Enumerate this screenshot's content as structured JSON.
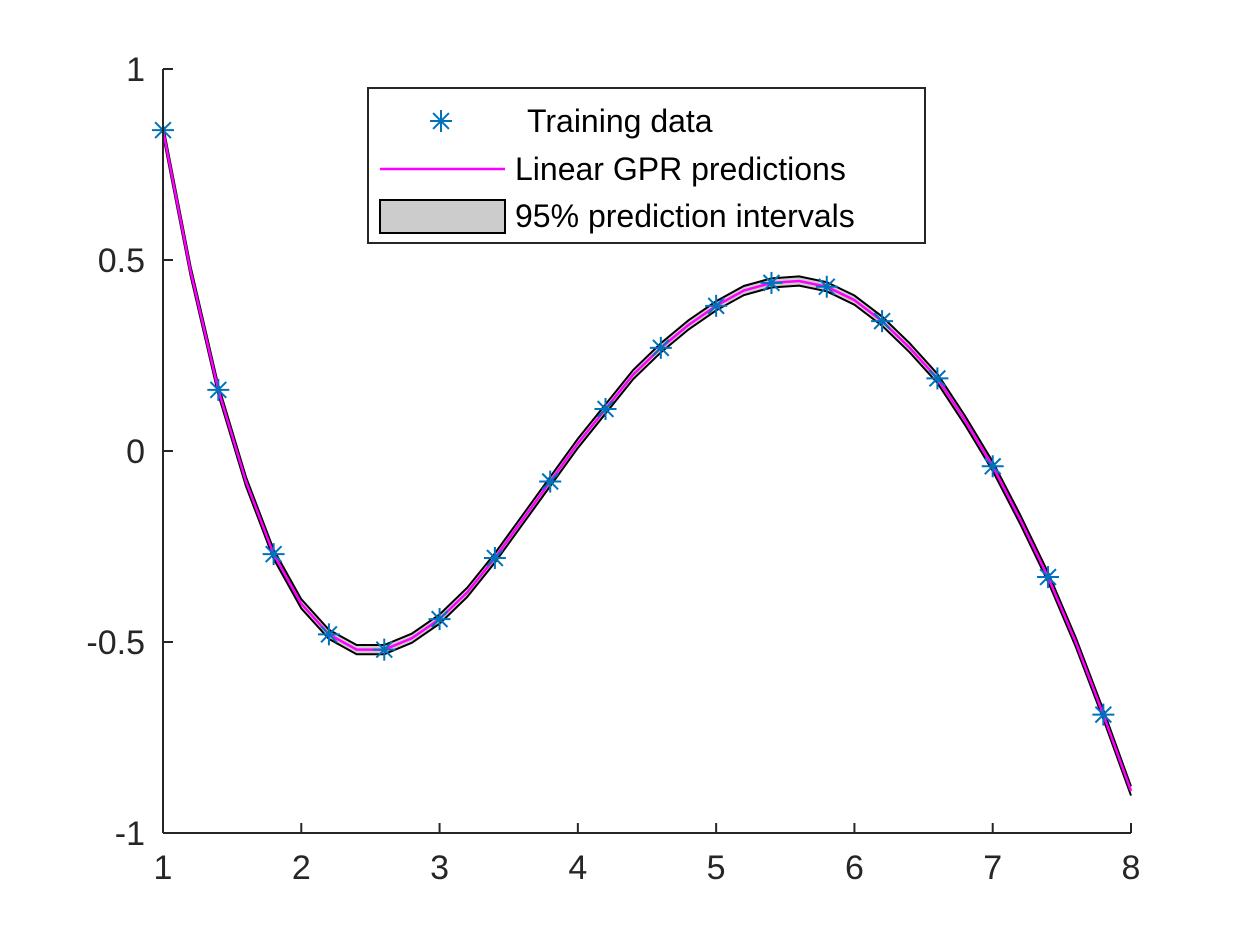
{
  "chart_data": {
    "type": "line",
    "xlim": [
      1,
      8
    ],
    "ylim": [
      -1,
      1
    ],
    "x_ticks": [
      1,
      2,
      3,
      4,
      5,
      6,
      7,
      8
    ],
    "y_ticks": [
      1,
      0.5,
      0,
      -0.5,
      -1
    ],
    "x_tick_labels": [
      "1",
      "2",
      "3",
      "4",
      "5",
      "6",
      "7",
      "8"
    ],
    "y_tick_labels": [
      "1",
      "0.5",
      "0",
      "-0.5",
      "-1"
    ],
    "grid": false,
    "legend_position": "top-center",
    "legend": {
      "training": "Training data",
      "prediction": "Linear GPR predictions",
      "interval": "95% prediction intervals"
    },
    "colors": {
      "training": "#0072BD",
      "prediction": "#FF00FF",
      "interval_fill": "#CCCCCC",
      "interval_edge": "#000000",
      "axis": "#262626"
    },
    "training_data": {
      "x": [
        1.0,
        1.4,
        1.8,
        2.2,
        2.6,
        3.0,
        3.4,
        3.8,
        4.2,
        4.6,
        5.0,
        5.4,
        5.8,
        6.2,
        6.6,
        7.0,
        7.4,
        7.8
      ],
      "y": [
        0.84,
        0.16,
        -0.27,
        -0.48,
        -0.52,
        -0.44,
        -0.28,
        -0.08,
        0.11,
        0.27,
        0.38,
        0.44,
        0.43,
        0.34,
        0.19,
        -0.04,
        -0.33,
        -0.69
      ]
    },
    "prediction": {
      "x": [
        1.0,
        1.2,
        1.4,
        1.6,
        1.8,
        2.0,
        2.2,
        2.4,
        2.6,
        2.8,
        3.0,
        3.2,
        3.4,
        3.6,
        3.8,
        4.0,
        4.2,
        4.4,
        4.6,
        4.8,
        5.0,
        5.2,
        5.4,
        5.6,
        5.8,
        6.0,
        6.2,
        6.4,
        6.6,
        6.8,
        7.0,
        7.2,
        7.4,
        7.6,
        7.8,
        8.0
      ],
      "y": [
        0.84,
        0.47,
        0.16,
        -0.08,
        -0.27,
        -0.4,
        -0.48,
        -0.52,
        -0.52,
        -0.49,
        -0.44,
        -0.37,
        -0.28,
        -0.18,
        -0.08,
        0.02,
        0.11,
        0.2,
        0.27,
        0.33,
        0.38,
        0.42,
        0.44,
        0.445,
        0.43,
        0.395,
        0.34,
        0.27,
        0.19,
        0.08,
        -0.04,
        -0.18,
        -0.33,
        -0.5,
        -0.69,
        -0.89
      ]
    },
    "interval": {
      "half_width": 0.012
    }
  }
}
